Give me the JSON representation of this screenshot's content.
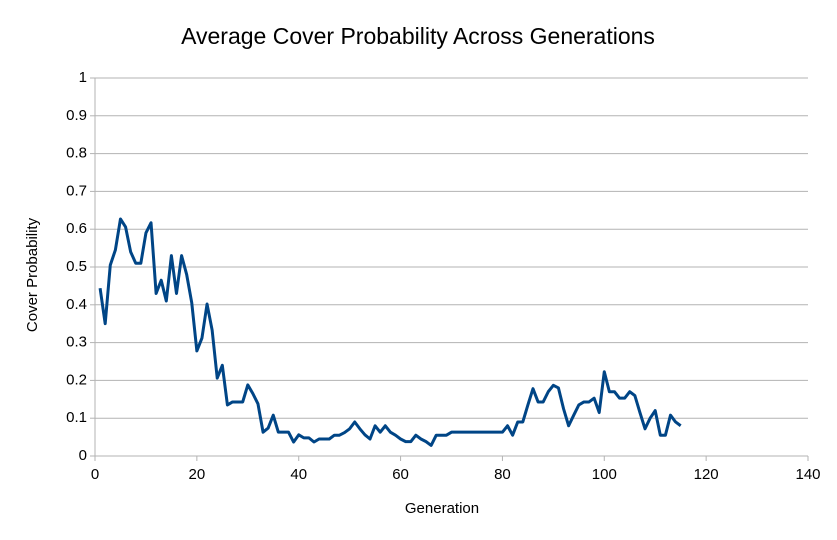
{
  "chart_data": {
    "type": "line",
    "title": "Average Cover Probability Across Generations",
    "x_label": "Generation",
    "y_label": "Cover Probability",
    "x": [
      1,
      2,
      3,
      4,
      5,
      6,
      7,
      8,
      9,
      10,
      11,
      12,
      13,
      14,
      15,
      16,
      17,
      18,
      19,
      20,
      21,
      22,
      23,
      24,
      25,
      26,
      27,
      28,
      29,
      30,
      31,
      32,
      33,
      34,
      35,
      36,
      37,
      38,
      39,
      40,
      41,
      42,
      43,
      44,
      45,
      46,
      47,
      48,
      49,
      50,
      51,
      52,
      53,
      54,
      55,
      56,
      57,
      58,
      59,
      60,
      61,
      62,
      63,
      64,
      65,
      66,
      67,
      68,
      69,
      70,
      71,
      72,
      73,
      74,
      75,
      76,
      77,
      78,
      79,
      80,
      81,
      82,
      83,
      84,
      85,
      86,
      87,
      88,
      89,
      90,
      91,
      92,
      93,
      94,
      95,
      96,
      97,
      98,
      99,
      100,
      101,
      102,
      103,
      104,
      105,
      106,
      107,
      108,
      109,
      110,
      111,
      112,
      113,
      114,
      115
    ],
    "values": [
      0.444,
      0.35,
      0.505,
      0.545,
      0.627,
      0.606,
      0.54,
      0.51,
      0.51,
      0.59,
      0.617,
      0.43,
      0.465,
      0.41,
      0.53,
      0.43,
      0.53,
      0.48,
      0.405,
      0.278,
      0.312,
      0.402,
      0.333,
      0.206,
      0.24,
      0.135,
      0.143,
      0.143,
      0.143,
      0.188,
      0.165,
      0.138,
      0.063,
      0.074,
      0.108,
      0.063,
      0.063,
      0.063,
      0.037,
      0.056,
      0.048,
      0.048,
      0.037,
      0.045,
      0.045,
      0.045,
      0.055,
      0.055,
      0.062,
      0.072,
      0.09,
      0.072,
      0.056,
      0.045,
      0.08,
      0.063,
      0.08,
      0.063,
      0.055,
      0.045,
      0.038,
      0.038,
      0.055,
      0.045,
      0.038,
      0.028,
      0.055,
      0.055,
      0.055,
      0.063,
      0.063,
      0.063,
      0.063,
      0.063,
      0.063,
      0.063,
      0.063,
      0.063,
      0.063,
      0.063,
      0.08,
      0.055,
      0.09,
      0.09,
      0.135,
      0.178,
      0.143,
      0.143,
      0.17,
      0.187,
      0.18,
      0.125,
      0.08,
      0.108,
      0.135,
      0.143,
      0.143,
      0.153,
      0.115,
      0.223,
      0.17,
      0.17,
      0.153,
      0.153,
      0.17,
      0.16,
      0.115,
      0.072,
      0.1,
      0.12,
      0.055,
      0.055,
      0.108,
      0.09,
      0.08
    ],
    "color": "#004586",
    "xlim": [
      0,
      140
    ],
    "xticks": [
      0,
      20,
      40,
      60,
      80,
      100,
      120,
      140
    ],
    "ylim": [
      0,
      1
    ],
    "yticks": [
      0,
      0.1,
      0.2,
      0.3,
      0.4,
      0.5,
      0.6,
      0.7,
      0.8,
      0.9,
      1
    ],
    "grid": true
  }
}
